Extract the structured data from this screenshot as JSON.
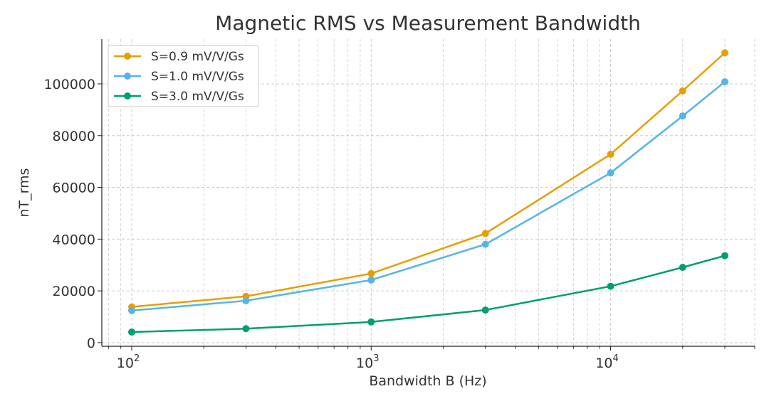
{
  "chart_data": {
    "type": "line",
    "title": "Magnetic RMS vs Measurement Bandwidth",
    "xlabel": "Bandwidth B (Hz)",
    "ylabel": "nT_rms",
    "xscale": "log",
    "xlim": [
      75,
      40000
    ],
    "ylim": [
      -1400,
      117300
    ],
    "grid": true,
    "legend_position": "top-left",
    "x": [
      100,
      300,
      1000,
      3000,
      10000,
      20000,
      30000
    ],
    "x_ticks": [
      {
        "value": 100,
        "base": "10",
        "exp": "2"
      },
      {
        "value": 1000,
        "base": "10",
        "exp": "3"
      },
      {
        "value": 10000,
        "base": "10",
        "exp": "4"
      }
    ],
    "y_ticks": [
      0,
      20000,
      40000,
      60000,
      80000,
      100000
    ],
    "series": [
      {
        "name": "S=0.9 mV/V/Gs",
        "color": "#E69F00",
        "values": [
          13800,
          17900,
          26700,
          42200,
          72800,
          97300,
          112000
        ]
      },
      {
        "name": "S=1.0 mV/V/Gs",
        "color": "#56B4E9",
        "values": [
          12400,
          16200,
          24200,
          38000,
          65600,
          87600,
          100800
        ]
      },
      {
        "name": "S=3.0 mV/V/Gs",
        "color": "#009E73",
        "values": [
          4100,
          5400,
          8000,
          12600,
          21800,
          29100,
          33600
        ]
      }
    ]
  }
}
